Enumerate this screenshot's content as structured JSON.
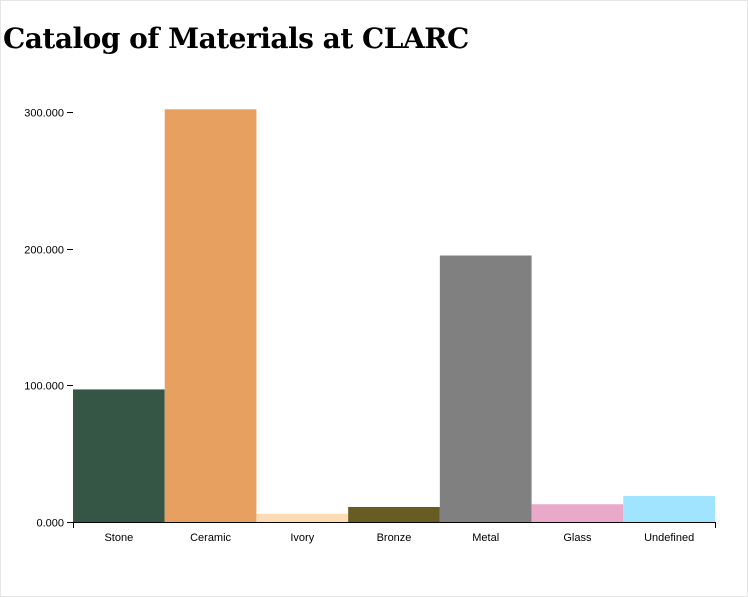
{
  "title": "Catalog of Materials at CLARC",
  "chart_data": {
    "type": "bar",
    "title": "Catalog of Materials at CLARC",
    "xlabel": "",
    "ylabel": "",
    "categories": [
      "Stone",
      "Ceramic",
      "Ivory",
      "Bronze",
      "Metal",
      "Glass",
      "Undefined"
    ],
    "values": [
      97000,
      302000,
      6000,
      11000,
      195000,
      13000,
      19000
    ],
    "colors": [
      "#355545",
      "#e8a060",
      "#fcdcb4",
      "#675d23",
      "#808080",
      "#e8aac8",
      "#a1e4ff"
    ],
    "ylim": [
      0,
      320000
    ],
    "yticks": [
      0,
      100000,
      200000,
      300000
    ],
    "ytick_labels": [
      "0.000",
      "100.000",
      "200.000",
      "300.000"
    ],
    "grid": false,
    "legend": "none"
  }
}
